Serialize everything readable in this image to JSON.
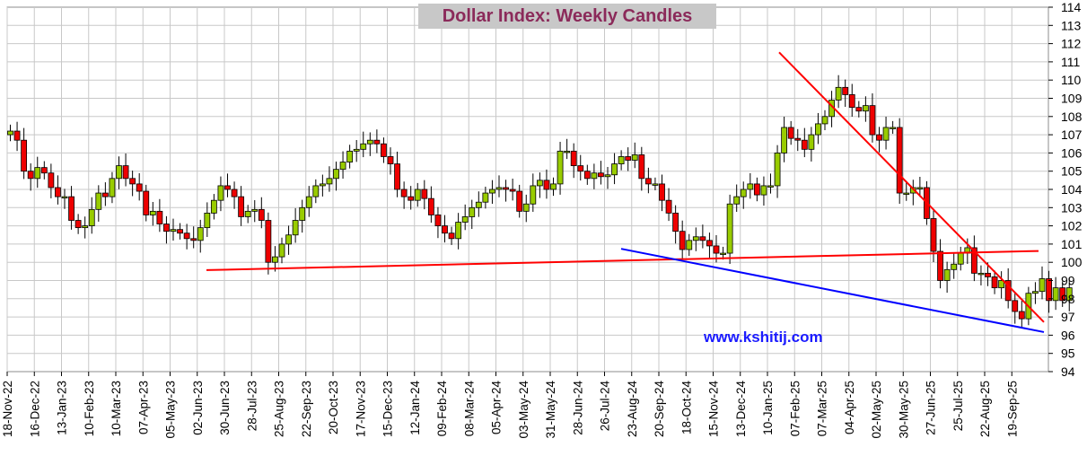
{
  "chart_data": {
    "type": "candlestick",
    "title": "Dollar Index: Weekly Candles",
    "watermark": "www.kshitij.com",
    "ylim": [
      94,
      114
    ],
    "y_ticks": [
      "94",
      "95",
      "96",
      "97",
      "98",
      "99",
      "100",
      "101",
      "102",
      "103",
      "104",
      "105",
      "106",
      "107",
      "108",
      "109",
      "110",
      "111",
      "112",
      "113",
      "114"
    ],
    "x_tick_labels": [
      "18-Nov-22",
      "16-Dec-22",
      "13-Jan-23",
      "10-Feb-23",
      "10-Mar-23",
      "07-Apr-23",
      "05-May-23",
      "02-Jun-23",
      "30-Jun-23",
      "28-Jul-23",
      "25-Aug-23",
      "22-Sep-23",
      "20-Oct-23",
      "17-Nov-23",
      "15-Dec-23",
      "12-Jan-24",
      "09-Feb-24",
      "08-Mar-24",
      "05-Apr-24",
      "03-May-24",
      "31-May-24",
      "28-Jun-24",
      "26-Jul-24",
      "23-Aug-24",
      "20-Sep-24",
      "18-Oct-24",
      "15-Nov-24",
      "13-Dec-24",
      "10-Jan-25",
      "07-Feb-25",
      "07-Mar-25",
      "04-Apr-25",
      "02-May-25",
      "30-May-25",
      "27-Jun-25",
      "25-Jul-25",
      "22-Aug-25",
      "19-Sep-25"
    ],
    "grid": true,
    "colors": {
      "up": "#99cc00",
      "down": "#ee0000",
      "support": "#ff0000",
      "resistance": "#ff0000",
      "lower_channel": "#0000ff"
    },
    "closes": [
      107.2,
      106.7,
      105.0,
      104.6,
      105.2,
      104.9,
      104.1,
      103.6,
      103.6,
      102.3,
      101.9,
      102.0,
      102.9,
      103.8,
      103.6,
      104.6,
      105.3,
      104.6,
      104.3,
      103.9,
      102.6,
      102.8,
      102.1,
      101.7,
      101.8,
      101.6,
      101.3,
      101.2,
      101.9,
      102.7,
      103.4,
      104.2,
      104.0,
      103.6,
      102.5,
      102.8,
      102.9,
      102.3,
      100.0,
      100.3,
      101.0,
      101.5,
      102.3,
      103.0,
      103.6,
      104.2,
      104.3,
      104.6,
      105.1,
      105.5,
      106.1,
      106.2,
      106.5,
      106.7,
      106.5,
      105.8,
      105.4,
      104.0,
      103.6,
      103.4,
      104.0,
      103.5,
      102.6,
      102.0,
      101.6,
      101.3,
      102.2,
      102.5,
      103.0,
      103.3,
      103.8,
      104.0,
      104.1,
      104.0,
      103.9,
      102.8,
      103.2,
      104.2,
      104.5,
      104.0,
      104.3,
      106.1,
      106.1,
      105.3,
      105.0,
      104.6,
      104.9,
      104.7,
      104.8,
      105.4,
      105.8,
      105.6,
      105.9,
      104.6,
      104.3,
      104.3,
      103.4,
      102.7,
      101.7,
      100.7,
      101.2,
      101.4,
      101.2,
      100.9,
      100.5,
      100.5,
      103.2,
      103.6,
      104.0,
      104.3,
      103.7,
      104.2,
      104.2,
      106.0,
      107.4,
      106.8,
      106.7,
      106.2,
      107.0,
      107.6,
      108.0,
      108.9,
      109.6,
      109.2,
      108.5,
      108.3,
      108.6,
      107.0,
      106.7,
      107.4,
      107.4,
      103.8,
      103.8,
      104.1,
      104.1,
      102.4,
      100.6,
      99.0,
      99.6,
      99.9,
      100.5,
      100.8,
      99.4,
      99.4,
      99.2,
      98.6,
      99.0,
      97.9,
      97.3,
      96.9,
      98.3,
      98.4,
      99.1,
      97.9,
      98.6,
      97.9,
      98.6
    ]
  }
}
